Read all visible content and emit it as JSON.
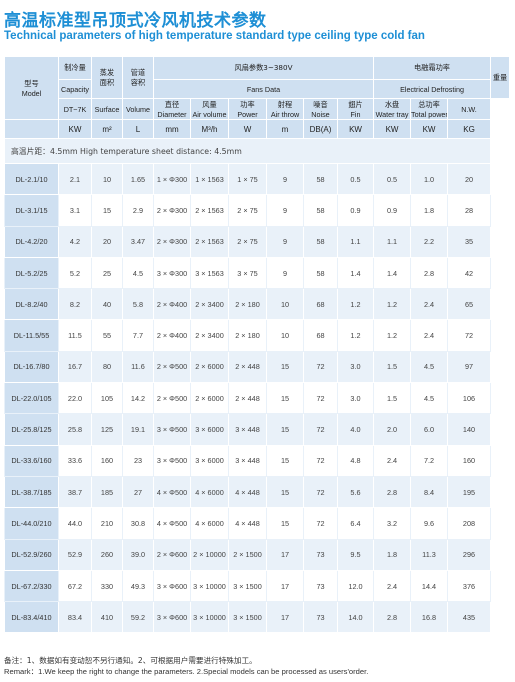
{
  "title": {
    "cn": "高温标准型吊顶式冷风机技术参数",
    "en": "Technical parameters of high temperature standard type ceiling type cold fan"
  },
  "header": {
    "model_cn": "型号",
    "model_en": "Model",
    "capacity_cn": "制冷量",
    "capacity_en": "Capacity",
    "capacity_cond": "DT~7K",
    "capacity_unit": "KW",
    "surface_cn1": "蒸发",
    "surface_cn2": "面积",
    "surface_en": "Surface",
    "surface_unit": "m²",
    "volume_cn1": "管道",
    "volume_cn2": "容积",
    "volume_en": "Volume",
    "volume_unit": "L",
    "fan_group_cn": "风扇参数3~380V",
    "fan_group_en": "Fans Data",
    "fan_diameter_cn": "直径",
    "fan_diameter_en": "Diameter",
    "fan_diameter_unit": "mm",
    "fan_airvol_cn": "风量",
    "fan_airvol_en": "Air volume",
    "fan_airvol_unit": "M³/h",
    "fan_power_cn": "功率",
    "fan_power_en": "Power",
    "fan_power_unit": "W",
    "fan_throw_cn": "射程",
    "fan_throw_en": "Air throw",
    "fan_throw_unit": "m",
    "noise_cn": "噪音",
    "noise_en": "Noise",
    "noise_unit": "DB(A)",
    "defrost_group_cn": "电融霜功率",
    "defrost_group_en": "Electrical Defrosting",
    "fin_cn": "翅片",
    "fin_en": "Fin",
    "fin_unit": "KW",
    "tray_cn": "水盘",
    "tray_en": "Water tray",
    "tray_unit": "KW",
    "total_cn": "总功率",
    "total_en": "Total power",
    "total_unit": "KW",
    "weight_cn": "重量",
    "weight_en": "N.W.",
    "weight_unit": "KG"
  },
  "fin_distance_note": "高温片距：4.5mm   High temperature sheet distance: 4.5mm",
  "rows": [
    {
      "model": "DL-2.1/10",
      "capacity": "2.1",
      "surface": "10",
      "volume": "1.65",
      "diameter": "1 × Φ300",
      "airvol": "1 × 1563",
      "power": "1 × 75",
      "throw": "9",
      "noise": "58",
      "fin": "0.5",
      "tray": "0.5",
      "total": "1.0",
      "weight": "20"
    },
    {
      "model": "DL-3.1/15",
      "capacity": "3.1",
      "surface": "15",
      "volume": "2.9",
      "diameter": "2 × Φ300",
      "airvol": "2 × 1563",
      "power": "2 × 75",
      "throw": "9",
      "noise": "58",
      "fin": "0.9",
      "tray": "0.9",
      "total": "1.8",
      "weight": "28"
    },
    {
      "model": "DL-4.2/20",
      "capacity": "4.2",
      "surface": "20",
      "volume": "3.47",
      "diameter": "2 × Φ300",
      "airvol": "2 × 1563",
      "power": "2 × 75",
      "throw": "9",
      "noise": "58",
      "fin": "1.1",
      "tray": "1.1",
      "total": "2.2",
      "weight": "35"
    },
    {
      "model": "DL-5.2/25",
      "capacity": "5.2",
      "surface": "25",
      "volume": "4.5",
      "diameter": "3 × Φ300",
      "airvol": "3 × 1563",
      "power": "3 × 75",
      "throw": "9",
      "noise": "58",
      "fin": "1.4",
      "tray": "1.4",
      "total": "2.8",
      "weight": "42"
    },
    {
      "model": "DL-8.2/40",
      "capacity": "8.2",
      "surface": "40",
      "volume": "5.8",
      "diameter": "2 × Φ400",
      "airvol": "2 × 3400",
      "power": "2 × 180",
      "throw": "10",
      "noise": "68",
      "fin": "1.2",
      "tray": "1.2",
      "total": "2.4",
      "weight": "65"
    },
    {
      "model": "DL-11.5/55",
      "capacity": "11.5",
      "surface": "55",
      "volume": "7.7",
      "diameter": "2 × Φ400",
      "airvol": "2 × 3400",
      "power": "2 × 180",
      "throw": "10",
      "noise": "68",
      "fin": "1.2",
      "tray": "1.2",
      "total": "2.4",
      "weight": "72"
    },
    {
      "model": "DL-16.7/80",
      "capacity": "16.7",
      "surface": "80",
      "volume": "11.6",
      "diameter": "2 × Φ500",
      "airvol": "2 × 6000",
      "power": "2 × 448",
      "throw": "15",
      "noise": "72",
      "fin": "3.0",
      "tray": "1.5",
      "total": "4.5",
      "weight": "97"
    },
    {
      "model": "DL-22.0/105",
      "capacity": "22.0",
      "surface": "105",
      "volume": "14.2",
      "diameter": "2 × Φ500",
      "airvol": "2 × 6000",
      "power": "2 × 448",
      "throw": "15",
      "noise": "72",
      "fin": "3.0",
      "tray": "1.5",
      "total": "4.5",
      "weight": "106"
    },
    {
      "model": "DL-25.8/125",
      "capacity": "25.8",
      "surface": "125",
      "volume": "19.1",
      "diameter": "3 × Φ500",
      "airvol": "3 × 6000",
      "power": "3 × 448",
      "throw": "15",
      "noise": "72",
      "fin": "4.0",
      "tray": "2.0",
      "total": "6.0",
      "weight": "140"
    },
    {
      "model": "DL-33.6/160",
      "capacity": "33.6",
      "surface": "160",
      "volume": "23",
      "diameter": "3 × Φ500",
      "airvol": "3 × 6000",
      "power": "3 × 448",
      "throw": "15",
      "noise": "72",
      "fin": "4.8",
      "tray": "2.4",
      "total": "7.2",
      "weight": "160"
    },
    {
      "model": "DL-38.7/185",
      "capacity": "38.7",
      "surface": "185",
      "volume": "27",
      "diameter": "4 × Φ500",
      "airvol": "4 × 6000",
      "power": "4 × 448",
      "throw": "15",
      "noise": "72",
      "fin": "5.6",
      "tray": "2.8",
      "total": "8.4",
      "weight": "195"
    },
    {
      "model": "DL-44.0/210",
      "capacity": "44.0",
      "surface": "210",
      "volume": "30.8",
      "diameter": "4 × Φ500",
      "airvol": "4 × 6000",
      "power": "4 × 448",
      "throw": "15",
      "noise": "72",
      "fin": "6.4",
      "tray": "3.2",
      "total": "9.6",
      "weight": "208"
    },
    {
      "model": "DL-52.9/260",
      "capacity": "52.9",
      "surface": "260",
      "volume": "39.0",
      "diameter": "2 × Φ600",
      "airvol": "2 × 10000",
      "power": "2 × 1500",
      "throw": "17",
      "noise": "73",
      "fin": "9.5",
      "tray": "1.8",
      "total": "11.3",
      "weight": "296"
    },
    {
      "model": "DL-67.2/330",
      "capacity": "67.2",
      "surface": "330",
      "volume": "49.3",
      "diameter": "3 × Φ600",
      "airvol": "3 × 10000",
      "power": "3 × 1500",
      "throw": "17",
      "noise": "73",
      "fin": "12.0",
      "tray": "2.4",
      "total": "14.4",
      "weight": "376"
    },
    {
      "model": "DL-83.4/410",
      "capacity": "83.4",
      "surface": "410",
      "volume": "59.2",
      "diameter": "3 × Φ600",
      "airvol": "3 × 10000",
      "power": "3 × 1500",
      "throw": "17",
      "noise": "73",
      "fin": "14.0",
      "tray": "2.8",
      "total": "16.8",
      "weight": "435"
    }
  ],
  "footer": {
    "cn": "备注：1、数据如有变动恕不另行通知。2、可根据用户需要进行特殊加工。",
    "en": "Remark：1.We keep the right to change the parameters. 2.Special models can be processed as users'order."
  }
}
